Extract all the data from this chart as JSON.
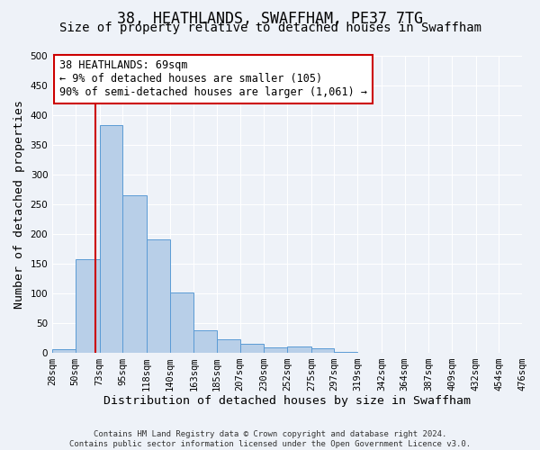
{
  "title": "38, HEATHLANDS, SWAFFHAM, PE37 7TG",
  "subtitle": "Size of property relative to detached houses in Swaffham",
  "xlabel": "Distribution of detached houses by size in Swaffham",
  "ylabel": "Number of detached properties",
  "footer_line1": "Contains HM Land Registry data © Crown copyright and database right 2024.",
  "footer_line2": "Contains public sector information licensed under the Open Government Licence v3.0.",
  "bin_edges": [
    28,
    50,
    73,
    95,
    118,
    140,
    163,
    185,
    207,
    230,
    252,
    275,
    297,
    319,
    342,
    364,
    387,
    409,
    432,
    454,
    476
  ],
  "bin_counts": [
    5,
    157,
    383,
    265,
    190,
    101,
    37,
    22,
    14,
    8,
    10,
    7,
    1,
    0,
    0,
    0,
    0,
    0,
    0,
    0
  ],
  "bar_color": "#b8cfe8",
  "bar_edge_color": "#5b9bd5",
  "vline_x": 69,
  "vline_color": "#cc0000",
  "annot_line1": "38 HEATHLANDS: 69sqm",
  "annot_line2": "← 9% of detached houses are smaller (105)",
  "annot_line3": "90% of semi-detached houses are larger (1,061) →",
  "ylim": [
    0,
    500
  ],
  "yticks": [
    0,
    50,
    100,
    150,
    200,
    250,
    300,
    350,
    400,
    450,
    500
  ],
  "bg_color": "#eef2f8",
  "grid_color": "#ffffff",
  "title_fontsize": 12,
  "subtitle_fontsize": 10,
  "axis_label_fontsize": 9.5,
  "tick_label_fontsize": 7.5,
  "annotation_fontsize": 8.5
}
